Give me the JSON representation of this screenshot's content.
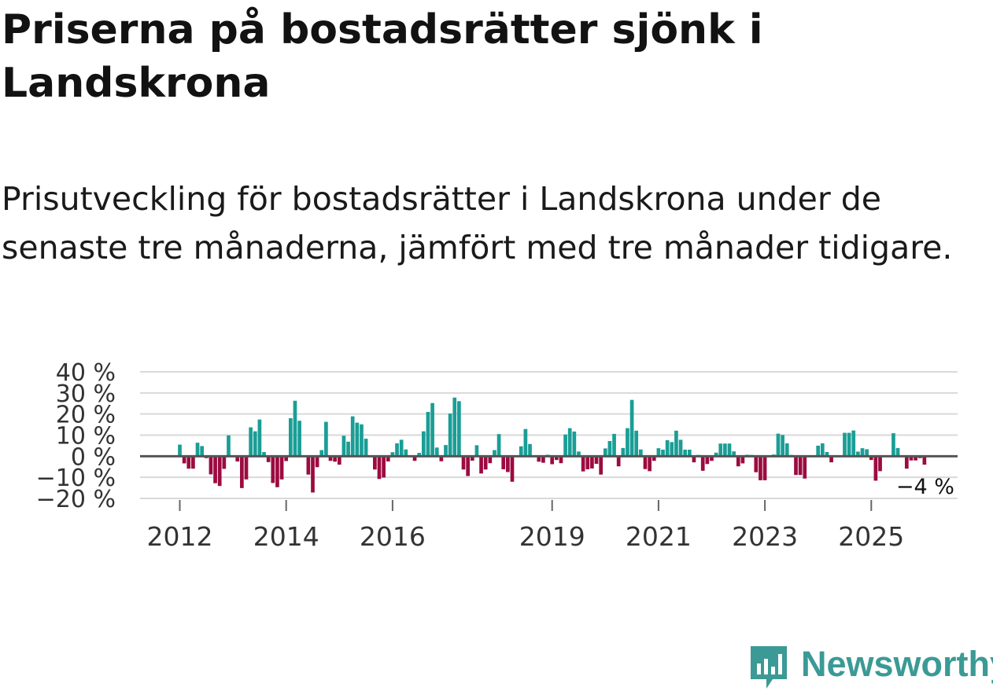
{
  "header": {
    "title": "Priserna på bostadsrätter sjönk i Landskrona",
    "subtitle": "Prisutveckling för bostadsrätter i Landskrona under de senaste tre månaderna, jämfört med tre månader tidigare."
  },
  "colors": {
    "positive": "#1a9e96",
    "negative": "#9b0b3f",
    "grid": "#d9d9d9",
    "baseline": "#555555"
  },
  "chart_data": {
    "type": "bar",
    "title": "Priserna på bostadsrätter sjönk i Landskrona",
    "xlabel": "",
    "ylabel": "",
    "ylim": [
      -20,
      40
    ],
    "yticks": [
      -20,
      -10,
      0,
      10,
      20,
      30,
      40
    ],
    "ytick_labels": [
      "−20 %",
      "−10 %",
      "0 %",
      "10 %",
      "20 %",
      "30 %",
      "40 %"
    ],
    "xticks": [
      2012,
      2014,
      2016,
      2019,
      2021,
      2023,
      2025
    ],
    "xtick_labels": [
      "2012",
      "2014",
      "2016",
      "2019",
      "2021",
      "2023",
      "2025"
    ],
    "grid": true,
    "x_start": 2012.0,
    "step_years": 0.08333,
    "values": [
      5.5,
      -3.4,
      -5.9,
      -5.9,
      6.4,
      4.8,
      -0.9,
      -8.6,
      -12.8,
      -14.1,
      -6.0,
      9.9,
      0,
      -2.5,
      -15.1,
      -11.0,
      13.7,
      11.8,
      17.4,
      2.0,
      -2.8,
      -12.7,
      -14.7,
      -11.0,
      -2.3,
      18.0,
      26.3,
      16.8,
      0,
      -8.7,
      -17.2,
      -5.2,
      2.9,
      16.3,
      -2.2,
      -2.6,
      -4.0,
      9.7,
      6.9,
      18.9,
      15.9,
      15.1,
      8.3,
      0,
      -6.3,
      -10.8,
      -10.1,
      -2.5,
      1.9,
      6.1,
      7.8,
      3.2,
      0.4,
      -2.2,
      1.6,
      11.8,
      21.0,
      25.2,
      4.1,
      -2.4,
      5.3,
      20.2,
      27.8,
      26.1,
      -6.3,
      -9.4,
      -2.1,
      5.2,
      -8.2,
      -6.3,
      -3.3,
      2.9,
      10.5,
      -6.2,
      -7.5,
      -12.1,
      0.4,
      4.7,
      12.9,
      5.8,
      0.1,
      -2.6,
      -3.1,
      0.7,
      -3.8,
      -1.8,
      -3.3,
      10.3,
      13.3,
      11.7,
      2.2,
      -7.2,
      -6.2,
      -5.8,
      -3.6,
      -8.7,
      3.7,
      7.2,
      10.6,
      -4.8,
      3.9,
      13.3,
      26.7,
      12.1,
      3.2,
      -6.1,
      -7.1,
      -2.2,
      3.8,
      3.1,
      7.6,
      6.7,
      12.1,
      7.8,
      3.1,
      3.1,
      -2.9,
      0.6,
      -6.9,
      -3.7,
      -2.2,
      1.7,
      6.0,
      6.0,
      6.0,
      2.3,
      -4.8,
      -3.4,
      0.7,
      0.6,
      -7.6,
      -11.4,
      -11.4,
      0,
      0.8,
      10.7,
      10.1,
      6.1,
      0.6,
      -8.9,
      -8.9,
      -10.6,
      0,
      0,
      5.0,
      6.1,
      2.0,
      -2.9,
      0,
      0,
      11.1,
      11.1,
      12.2,
      2.2,
      3.8,
      3.3,
      -1.8,
      -11.6,
      -7.1,
      0,
      0,
      10.9,
      3.9,
      0,
      -5.9,
      -2.0,
      -2.0,
      -0.9,
      -4.0
    ],
    "annotation": {
      "label": "−4 %",
      "value": -4
    }
  },
  "brand": {
    "name": "Newsworthy"
  }
}
